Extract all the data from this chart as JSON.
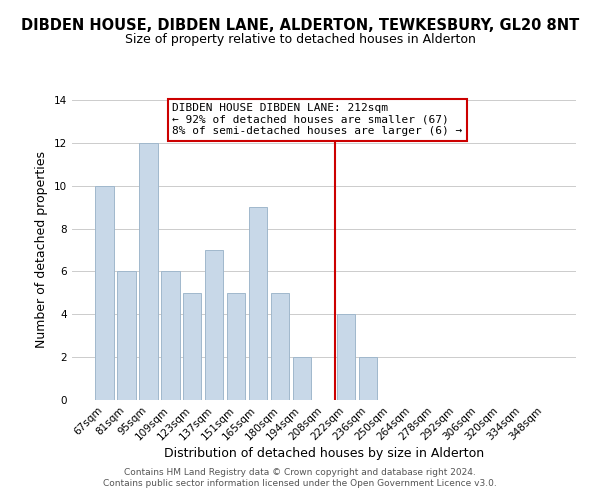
{
  "title": "DIBDEN HOUSE, DIBDEN LANE, ALDERTON, TEWKESBURY, GL20 8NT",
  "subtitle": "Size of property relative to detached houses in Alderton",
  "xlabel": "Distribution of detached houses by size in Alderton",
  "ylabel": "Number of detached properties",
  "footer_line1": "Contains HM Land Registry data © Crown copyright and database right 2024.",
  "footer_line2": "Contains public sector information licensed under the Open Government Licence v3.0.",
  "bar_labels": [
    "67sqm",
    "81sqm",
    "95sqm",
    "109sqm",
    "123sqm",
    "137sqm",
    "151sqm",
    "165sqm",
    "180sqm",
    "194sqm",
    "208sqm",
    "222sqm",
    "236sqm",
    "250sqm",
    "264sqm",
    "278sqm",
    "292sqm",
    "306sqm",
    "320sqm",
    "334sqm",
    "348sqm"
  ],
  "bar_values": [
    10,
    6,
    12,
    6,
    5,
    7,
    5,
    9,
    5,
    2,
    0,
    4,
    2,
    0,
    0,
    0,
    0,
    0,
    0,
    0,
    0
  ],
  "bar_color": "#c8d8e8",
  "bar_edge_color": "#a0b8cc",
  "vline_x_index": 10.5,
  "vline_color": "#cc0000",
  "annotation_line1": "DIBDEN HOUSE DIBDEN LANE: 212sqm",
  "annotation_line2": "← 92% of detached houses are smaller (67)",
  "annotation_line3": "8% of semi-detached houses are larger (6) →",
  "annotation_box_color": "#ffffff",
  "annotation_box_edge": "#cc0000",
  "ylim": [
    0,
    14
  ],
  "yticks": [
    0,
    2,
    4,
    6,
    8,
    10,
    12,
    14
  ],
  "title_fontsize": 10.5,
  "subtitle_fontsize": 9,
  "xlabel_fontsize": 9,
  "ylabel_fontsize": 9,
  "tick_fontsize": 7.5,
  "annotation_fontsize": 8,
  "footer_fontsize": 6.5
}
